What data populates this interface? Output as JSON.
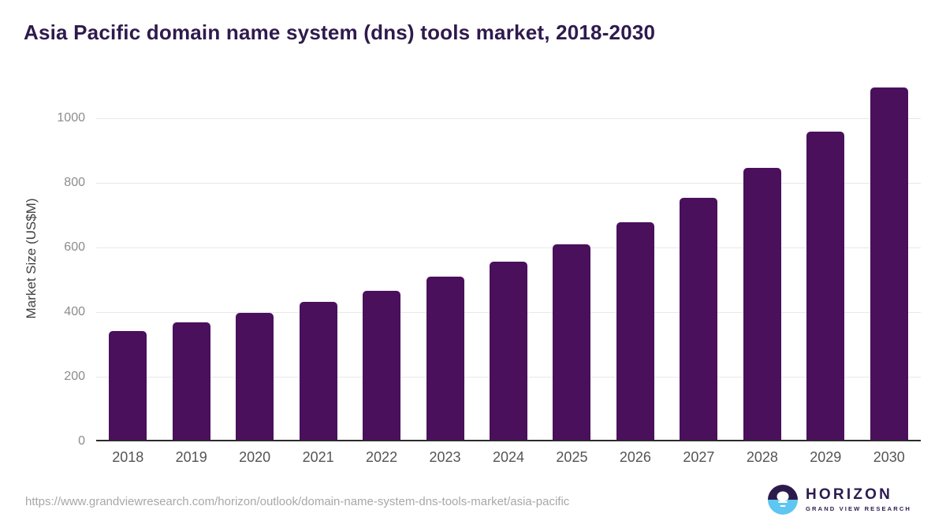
{
  "title": "Asia Pacific domain name system (dns) tools market, 2018-2030",
  "chart_data": {
    "type": "bar",
    "title": "Asia Pacific domain name system (dns) tools market, 2018-2030",
    "categories": [
      "2018",
      "2019",
      "2020",
      "2021",
      "2022",
      "2023",
      "2024",
      "2025",
      "2026",
      "2027",
      "2028",
      "2029",
      "2030"
    ],
    "values": [
      340,
      367,
      396,
      430,
      465,
      507,
      555,
      608,
      675,
      751,
      845,
      956,
      1093
    ],
    "xlabel": "",
    "ylabel": "Market Size (US$M)",
    "ylim": [
      0,
      1135
    ],
    "yticks": [
      0,
      200,
      400,
      600,
      800,
      1000
    ],
    "grid": true,
    "legend": false,
    "bar_color": "#4a105c"
  },
  "footer": {
    "source_url": "https://www.grandviewresearch.com/horizon/outlook/domain-name-system-dns-tools-market/asia-pacific",
    "logo": {
      "name": "HORIZON",
      "subtitle": "GRAND VIEW RESEARCH"
    }
  },
  "colors": {
    "bar": "#4a105c",
    "title": "#2f1a4d",
    "grid": "#e8e8e8",
    "axis": "#2b2b2b",
    "y_tick": "#8c8c8c",
    "x_tick": "#545454",
    "url": "#a8a8a8",
    "logo_purple": "#2b1b4d",
    "logo_blue": "#5ec6f0"
  }
}
